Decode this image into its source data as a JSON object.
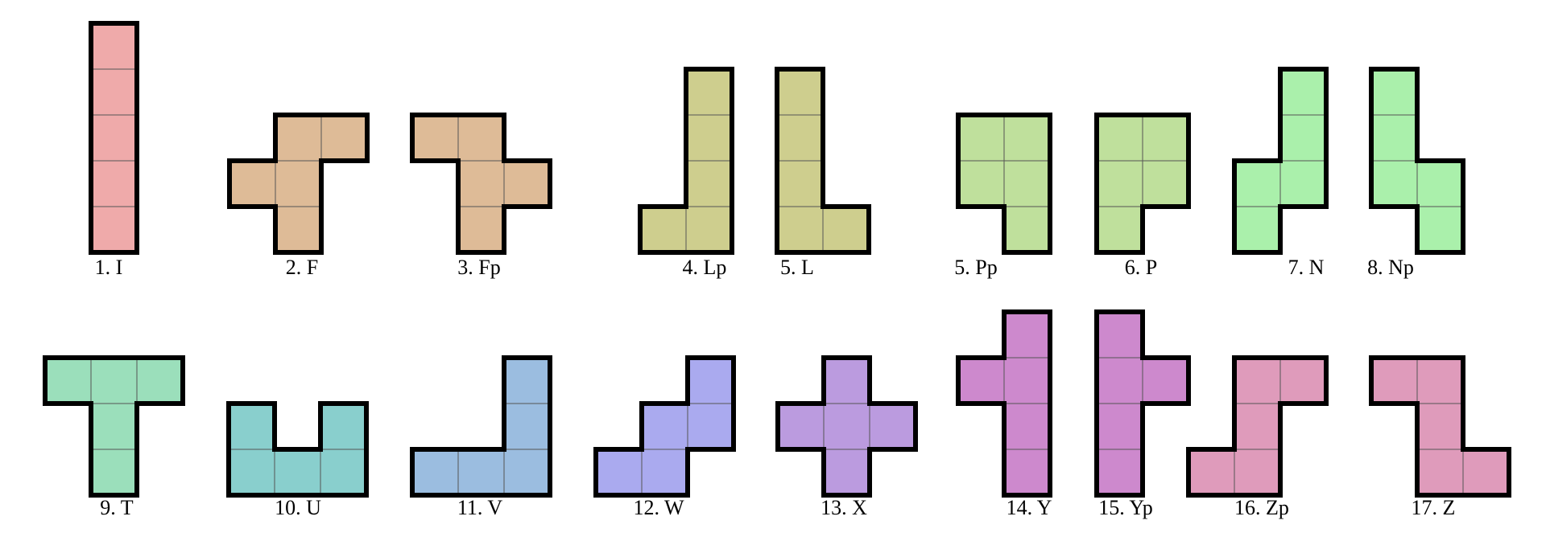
{
  "pieces": [
    {
      "label": "1. I",
      "color": "#efaaaa",
      "cells": [
        [
          0,
          0
        ],
        [
          0,
          1
        ],
        [
          0,
          2
        ],
        [
          0,
          3
        ],
        [
          0,
          4
        ]
      ]
    },
    {
      "label": "2. F",
      "color": "#debb97",
      "cells": [
        [
          1,
          0
        ],
        [
          2,
          0
        ],
        [
          0,
          1
        ],
        [
          1,
          1
        ],
        [
          1,
          2
        ]
      ]
    },
    {
      "label": "3. Fp",
      "color": "#debb97",
      "cells": [
        [
          0,
          0
        ],
        [
          1,
          0
        ],
        [
          1,
          1
        ],
        [
          2,
          1
        ],
        [
          1,
          2
        ]
      ]
    },
    {
      "label": "4. Lp",
      "color": "#cece8e",
      "cells": [
        [
          1,
          0
        ],
        [
          1,
          1
        ],
        [
          1,
          2
        ],
        [
          0,
          3
        ],
        [
          1,
          3
        ]
      ]
    },
    {
      "label": "5. L",
      "color": "#cece8e",
      "cells": [
        [
          0,
          0
        ],
        [
          0,
          1
        ],
        [
          0,
          2
        ],
        [
          0,
          3
        ],
        [
          1,
          3
        ]
      ]
    },
    {
      "label": "5. Pp",
      "color": "#bfe09c",
      "cells": [
        [
          0,
          0
        ],
        [
          1,
          0
        ],
        [
          0,
          1
        ],
        [
          1,
          1
        ],
        [
          1,
          2
        ]
      ]
    },
    {
      "label": "6. P",
      "color": "#bfe09c",
      "cells": [
        [
          0,
          0
        ],
        [
          1,
          0
        ],
        [
          0,
          1
        ],
        [
          1,
          1
        ],
        [
          0,
          2
        ]
      ]
    },
    {
      "label": "7. N",
      "color": "#aaf0ab",
      "cells": [
        [
          1,
          0
        ],
        [
          1,
          1
        ],
        [
          0,
          2
        ],
        [
          1,
          2
        ],
        [
          0,
          3
        ]
      ]
    },
    {
      "label": "8. Np",
      "color": "#aaf0ab",
      "cells": [
        [
          0,
          0
        ],
        [
          0,
          1
        ],
        [
          0,
          2
        ],
        [
          1,
          2
        ],
        [
          1,
          3
        ]
      ]
    },
    {
      "label": "9. T",
      "color": "#9bdfbb",
      "cells": [
        [
          0,
          0
        ],
        [
          1,
          0
        ],
        [
          2,
          0
        ],
        [
          1,
          1
        ],
        [
          1,
          2
        ]
      ]
    },
    {
      "label": "10. U",
      "color": "#89cfcd",
      "cells": [
        [
          0,
          0
        ],
        [
          2,
          0
        ],
        [
          0,
          1
        ],
        [
          1,
          1
        ],
        [
          2,
          1
        ]
      ]
    },
    {
      "label": "11. V",
      "color": "#9bbde0",
      "cells": [
        [
          2,
          0
        ],
        [
          2,
          1
        ],
        [
          0,
          2
        ],
        [
          1,
          2
        ],
        [
          2,
          2
        ]
      ]
    },
    {
      "label": "12. W",
      "color": "#aaaaef",
      "cells": [
        [
          2,
          0
        ],
        [
          1,
          1
        ],
        [
          2,
          1
        ],
        [
          0,
          2
        ],
        [
          1,
          2
        ]
      ]
    },
    {
      "label": "13. X",
      "color": "#bb9bdf",
      "cells": [
        [
          1,
          0
        ],
        [
          0,
          1
        ],
        [
          1,
          1
        ],
        [
          2,
          1
        ],
        [
          1,
          2
        ]
      ]
    },
    {
      "label": "14. Y",
      "color": "#cd89cd",
      "cells": [
        [
          1,
          0
        ],
        [
          0,
          1
        ],
        [
          1,
          1
        ],
        [
          1,
          2
        ],
        [
          1,
          3
        ]
      ]
    },
    {
      "label": "15. Yp",
      "color": "#cd89cd",
      "cells": [
        [
          0,
          0
        ],
        [
          0,
          1
        ],
        [
          1,
          1
        ],
        [
          0,
          2
        ],
        [
          0,
          3
        ]
      ]
    },
    {
      "label": "16. Zp",
      "color": "#df9bbb",
      "cells": [
        [
          1,
          0
        ],
        [
          2,
          0
        ],
        [
          1,
          1
        ],
        [
          0,
          2
        ],
        [
          1,
          2
        ]
      ]
    },
    {
      "label": "17. Z",
      "color": "#df9bbb",
      "cells": [
        [
          0,
          0
        ],
        [
          1,
          0
        ],
        [
          1,
          1
        ],
        [
          1,
          2
        ],
        [
          2,
          2
        ]
      ]
    }
  ]
}
